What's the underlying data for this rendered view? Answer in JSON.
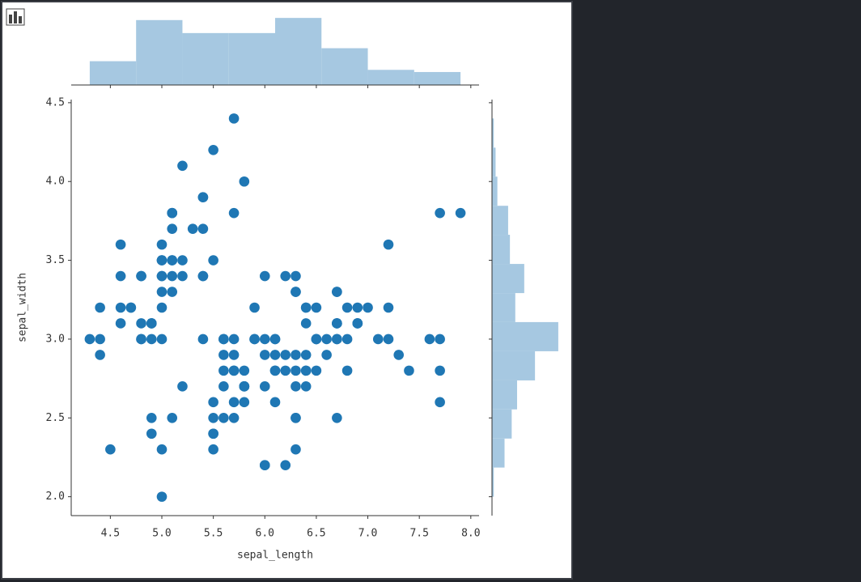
{
  "chart_data": [
    {
      "type": "scatter",
      "xlabel": "sepal_length",
      "ylabel": "sepal_width",
      "color": "#1f77b4",
      "xlim": [
        4.12,
        8.08
      ],
      "ylim": [
        1.88,
        4.52
      ],
      "xticks": [
        4.5,
        {
          "value": 5,
          "label": "5.0"
        },
        5.5,
        {
          "value": 6,
          "label": "6.0"
        },
        6.5,
        {
          "value": 7,
          "label": "7.0"
        },
        7.5,
        {
          "value": 8,
          "label": "8.0"
        }
      ],
      "yticks": [
        {
          "value": 2,
          "label": "2.0"
        },
        2.5,
        {
          "value": 3,
          "label": "3.0"
        },
        3.5,
        {
          "value": 4,
          "label": "4.0"
        },
        4.5
      ],
      "x": [
        5.1,
        4.9,
        4.7,
        4.6,
        5.0,
        5.4,
        4.6,
        5.0,
        4.4,
        4.9,
        5.4,
        4.8,
        4.8,
        4.3,
        5.8,
        5.7,
        5.4,
        5.1,
        5.7,
        5.1,
        5.4,
        5.1,
        4.6,
        5.1,
        4.8,
        5.0,
        5.0,
        5.2,
        5.2,
        4.7,
        4.8,
        5.4,
        5.2,
        5.5,
        4.9,
        5.0,
        5.5,
        4.9,
        4.4,
        5.1,
        5.0,
        4.5,
        4.4,
        5.0,
        5.1,
        4.8,
        5.1,
        4.6,
        5.3,
        5.0,
        7.0,
        6.4,
        6.9,
        5.5,
        6.5,
        5.7,
        6.3,
        4.9,
        6.6,
        5.2,
        5.0,
        5.9,
        6.0,
        6.1,
        5.6,
        6.7,
        5.6,
        5.8,
        6.2,
        5.6,
        5.9,
        6.1,
        6.3,
        6.1,
        6.4,
        6.6,
        6.8,
        6.7,
        6.0,
        5.7,
        5.5,
        5.5,
        5.8,
        6.0,
        5.4,
        6.0,
        6.7,
        6.3,
        5.6,
        5.5,
        5.5,
        6.1,
        5.8,
        5.0,
        5.6,
        5.7,
        5.7,
        6.2,
        5.1,
        5.7,
        6.3,
        5.8,
        7.1,
        6.3,
        6.5,
        7.6,
        4.9,
        7.3,
        6.7,
        7.2,
        6.5,
        6.4,
        6.8,
        5.7,
        5.8,
        6.4,
        6.5,
        7.7,
        7.7,
        6.0,
        6.9,
        5.6,
        7.7,
        6.3,
        6.7,
        7.2,
        6.2,
        6.1,
        6.4,
        7.2,
        7.4,
        7.9,
        6.4,
        6.3,
        6.1,
        7.7,
        6.3,
        6.4,
        6.0,
        6.9,
        6.7,
        6.9,
        5.8,
        6.8,
        6.7,
        6.7,
        6.3,
        6.5,
        6.2,
        5.9
      ],
      "values": [
        3.5,
        3.0,
        3.2,
        3.1,
        3.6,
        3.9,
        3.4,
        3.4,
        2.9,
        3.1,
        3.7,
        3.4,
        3.0,
        3.0,
        4.0,
        4.4,
        3.9,
        3.5,
        3.8,
        3.8,
        3.4,
        3.7,
        3.6,
        3.3,
        3.4,
        3.0,
        3.4,
        3.5,
        3.4,
        3.2,
        3.1,
        3.4,
        4.1,
        4.2,
        3.1,
        3.2,
        3.5,
        3.1,
        3.0,
        3.4,
        3.5,
        2.3,
        3.2,
        3.5,
        3.8,
        3.0,
        3.8,
        3.2,
        3.7,
        3.3,
        3.2,
        3.2,
        3.1,
        2.3,
        2.8,
        2.8,
        3.3,
        2.4,
        2.9,
        2.7,
        2.0,
        3.0,
        2.2,
        2.9,
        2.9,
        3.1,
        3.0,
        2.7,
        2.2,
        2.5,
        3.2,
        2.8,
        2.5,
        2.8,
        2.9,
        3.0,
        2.8,
        3.0,
        2.9,
        2.6,
        2.4,
        2.4,
        2.7,
        2.7,
        3.0,
        3.4,
        3.1,
        2.3,
        3.0,
        2.5,
        2.6,
        3.0,
        2.6,
        2.3,
        2.7,
        3.0,
        2.9,
        2.9,
        2.5,
        2.8,
        3.3,
        2.7,
        3.0,
        2.9,
        3.0,
        3.0,
        2.5,
        2.9,
        2.5,
        3.6,
        3.2,
        2.7,
        3.0,
        2.5,
        2.8,
        3.2,
        3.0,
        3.8,
        2.6,
        2.2,
        3.2,
        2.8,
        2.8,
        2.7,
        3.3,
        3.2,
        2.8,
        3.0,
        2.8,
        3.0,
        2.8,
        3.8,
        2.8,
        2.8,
        2.6,
        3.0,
        3.4,
        3.1,
        3.0,
        3.1,
        3.1,
        3.1,
        2.7,
        3.2,
        3.3,
        3.0,
        2.5,
        3.0,
        3.4,
        3.0
      ]
    },
    {
      "type": "histogram",
      "orientation": "vertical",
      "color": "#a6c8e1",
      "bins": [
        4.3,
        4.75,
        5.2,
        5.65,
        6.1,
        6.55,
        7.0,
        7.45,
        7.9
      ],
      "values": [
        11,
        30,
        24,
        24,
        31,
        17,
        7,
        6
      ],
      "ylim": [
        0,
        32.55
      ]
    },
    {
      "type": "histogram",
      "orientation": "horizontal",
      "color": "#a6c8e1",
      "bins": [
        2.0,
        2.185,
        2.369,
        2.554,
        2.738,
        2.923,
        3.108,
        3.292,
        3.477,
        3.662,
        3.846,
        4.031,
        4.215,
        4.4
      ],
      "values": [
        1,
        7,
        11,
        14,
        24,
        37,
        13,
        18,
        10,
        9,
        3,
        2,
        1
      ],
      "xlim": [
        0,
        38.85
      ]
    }
  ]
}
